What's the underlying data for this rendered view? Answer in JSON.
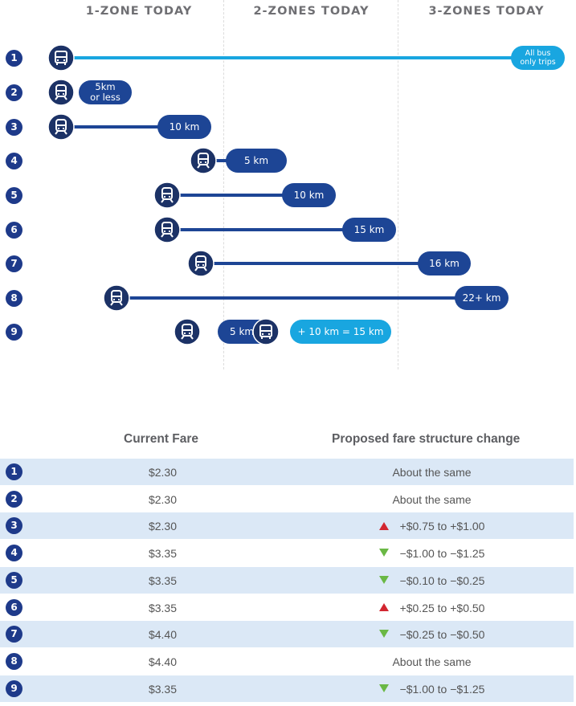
{
  "zones": [
    "1-ZONE TODAY",
    "2-ZONES TODAY",
    "3-ZONES TODAY"
  ],
  "colors": {
    "dark_blue": "#1d4595",
    "light_blue": "#19a6e0",
    "navy": "#1e3a8a",
    "up": "#d22630",
    "down": "#6ab845"
  },
  "trips": [
    {
      "num": "1",
      "mode": "bus",
      "label": "All bus\nonly trips"
    },
    {
      "num": "2",
      "mode": "train",
      "label": "5km\nor less"
    },
    {
      "num": "3",
      "mode": "train",
      "label": "10 km"
    },
    {
      "num": "4",
      "mode": "train",
      "label": "5 km"
    },
    {
      "num": "5",
      "mode": "train",
      "label": "10 km"
    },
    {
      "num": "6",
      "mode": "train",
      "label": "15 km"
    },
    {
      "num": "7",
      "mode": "train",
      "label": "16 km"
    },
    {
      "num": "8",
      "mode": "train",
      "label": "22+ km"
    },
    {
      "num": "9",
      "mode": "train+bus",
      "label": "5 km",
      "label2": "+ 10 km = 15 km"
    }
  ],
  "table": {
    "header_current": "Current Fare",
    "header_proposed": "Proposed fare structure change",
    "rows": [
      {
        "num": "1",
        "fare": "$2.30",
        "change": "About the same",
        "direction": "none"
      },
      {
        "num": "2",
        "fare": "$2.30",
        "change": "About the same",
        "direction": "none"
      },
      {
        "num": "3",
        "fare": "$2.30",
        "change": "+$0.75 to +$1.00",
        "direction": "up"
      },
      {
        "num": "4",
        "fare": "$3.35",
        "change": "−$1.00 to −$1.25",
        "direction": "down"
      },
      {
        "num": "5",
        "fare": "$3.35",
        "change": "−$0.10 to −$0.25",
        "direction": "down"
      },
      {
        "num": "6",
        "fare": "$3.35",
        "change": "+$0.25 to +$0.50",
        "direction": "up"
      },
      {
        "num": "7",
        "fare": "$4.40",
        "change": "−$0.25 to −$0.50",
        "direction": "down"
      },
      {
        "num": "8",
        "fare": "$4.40",
        "change": "About the same",
        "direction": "none"
      },
      {
        "num": "9",
        "fare": "$3.35",
        "change": "−$1.00 to −$1.25",
        "direction": "down"
      }
    ]
  }
}
